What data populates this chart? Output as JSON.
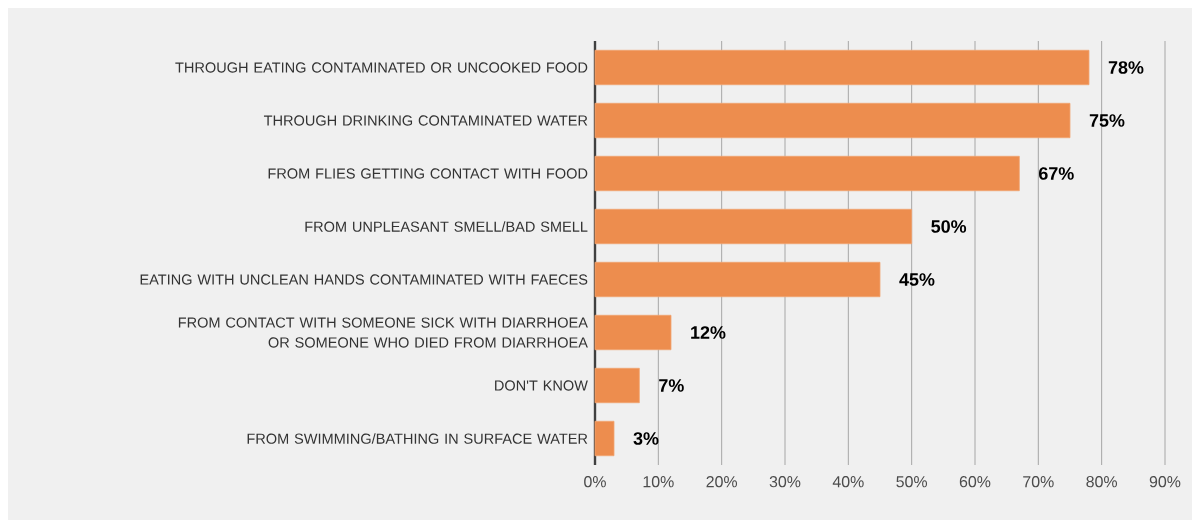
{
  "chart_data": {
    "type": "bar",
    "orientation": "horizontal",
    "categories": [
      "THROUGH EATING CONTAMINATED OR UNCOOKED FOOD",
      "THROUGH DRINKING CONTAMINATED WATER",
      "FROM FLIES GETTING CONTACT WITH FOOD",
      "FROM UNPLEASANT SMELL/BAD SMELL",
      "EATING WITH UNCLEAN HANDS CONTAMINATED WITH FAECES",
      "FROM CONTACT WITH SOMEONE SICK WITH DIARRHOEA OR SOMEONE WHO DIED FROM DIARRHOEA",
      "DON'T KNOW",
      "FROM SWIMMING/BATHING IN SURFACE WATER"
    ],
    "values": [
      78,
      75,
      67,
      50,
      45,
      12,
      7,
      3
    ],
    "value_labels": [
      "78%",
      "75%",
      "67%",
      "50%",
      "45%",
      "12%",
      "7%",
      "3%"
    ],
    "color": "#ed8d4e",
    "xlim": [
      0,
      90
    ],
    "xticks": [
      {
        "value": 0,
        "label": "0%"
      },
      {
        "value": 10,
        "label": "10%"
      },
      {
        "value": 20,
        "label": "20%"
      },
      {
        "value": 30,
        "label": "30%"
      },
      {
        "value": 40,
        "label": "40%"
      },
      {
        "value": 50,
        "label": "50%"
      },
      {
        "value": 60,
        "label": "60%"
      },
      {
        "value": 70,
        "label": "70%"
      },
      {
        "value": 80,
        "label": "80%"
      },
      {
        "value": 90,
        "label": "90%"
      }
    ],
    "grid": "x"
  }
}
